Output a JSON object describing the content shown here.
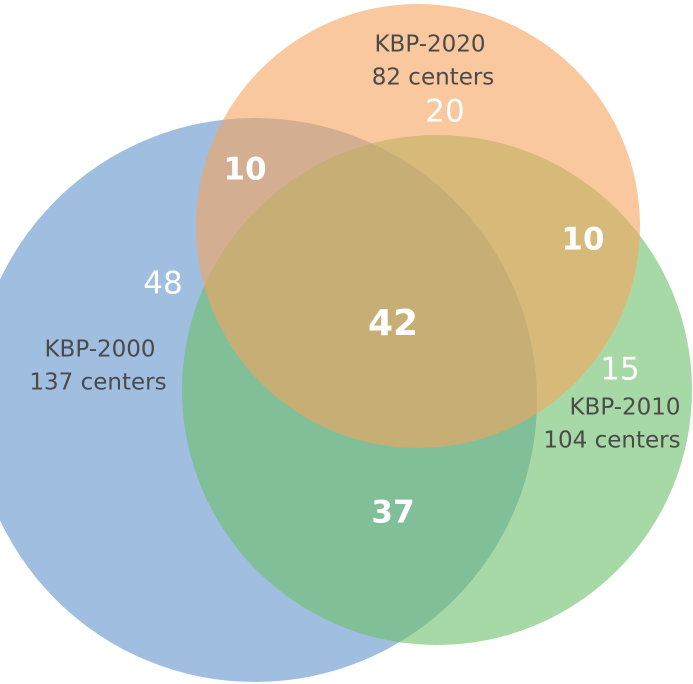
{
  "sets": [
    {
      "label": "KBP-2000",
      "count": "137 centers"
    },
    {
      "label": "KBP-2010",
      "count": "104 centers"
    },
    {
      "label": "KBP-2020",
      "count": "82 centers"
    }
  ],
  "regions": [
    {
      "sets": "KBP-2000 only",
      "value": 48
    },
    {
      "sets": "KBP-2010 only",
      "value": 15
    },
    {
      "sets": "KBP-2020 only",
      "value": 20
    },
    {
      "sets": "KBP-2000 and KBP-2020",
      "value": 10
    },
    {
      "sets": "KBP-2010 and KBP-2020",
      "value": 10
    },
    {
      "sets": "KBP-2000 and KBP-2010",
      "value": 37
    },
    {
      "sets": "all three",
      "value": 42
    }
  ]
}
